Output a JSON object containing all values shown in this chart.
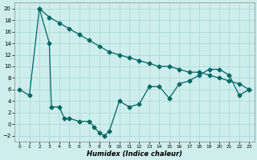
{
  "xlabel": "Humidex (Indice chaleur)",
  "bg_color": "#ceeeed",
  "grid_color": "#aed8d6",
  "line_color": "#006666",
  "xlim": [
    -0.5,
    23.5
  ],
  "ylim": [
    -3,
    21
  ],
  "yticks": [
    -2,
    0,
    2,
    4,
    6,
    8,
    10,
    12,
    14,
    16,
    18,
    20
  ],
  "xticks": [
    0,
    1,
    2,
    3,
    4,
    5,
    6,
    7,
    8,
    9,
    10,
    11,
    12,
    13,
    14,
    15,
    16,
    17,
    18,
    19,
    20,
    21,
    22,
    23
  ],
  "line1_x": [
    2,
    3,
    4,
    5,
    6,
    7,
    8,
    9,
    10,
    11,
    12,
    13,
    14,
    15,
    16,
    17,
    18,
    19,
    20,
    21,
    22,
    23
  ],
  "line1_y": [
    20,
    18.5,
    17.5,
    16.5,
    15.5,
    14.5,
    13.5,
    12.5,
    12,
    11.5,
    11,
    10.5,
    10,
    10,
    9.5,
    9,
    9,
    8.5,
    8,
    7.5,
    7,
    6
  ],
  "line2_x": [
    0,
    1,
    2,
    3,
    3.2,
    4,
    4.5,
    5,
    6,
    7,
    7.5,
    8,
    8.5,
    9,
    10,
    11,
    12,
    13,
    14,
    15,
    16,
    17,
    18,
    19,
    20,
    21,
    22,
    23
  ],
  "line2_y": [
    6,
    5,
    20,
    14,
    3,
    3,
    1,
    1,
    0.5,
    0.5,
    -0.5,
    -1.5,
    -2,
    -1.2,
    4,
    3,
    3.5,
    6.5,
    6.5,
    4.5,
    7,
    7.5,
    8.5,
    9.5,
    9.5,
    8.5,
    5,
    6
  ],
  "marker_size": 2.5,
  "linewidth": 0.9
}
